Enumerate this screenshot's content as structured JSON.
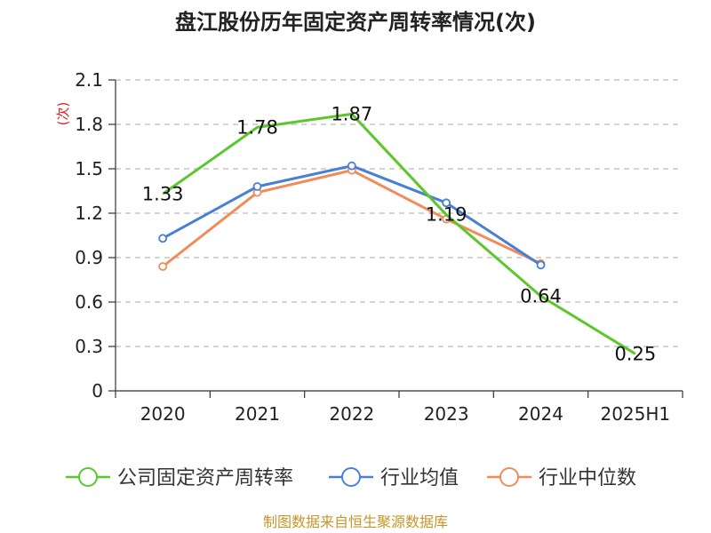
{
  "chart_data": {
    "type": "line",
    "title": "盘江股份历年固定资产周转率情况(次)",
    "ylabel": "(次)",
    "xlabel": "",
    "categories": [
      "2020",
      "2021",
      "2022",
      "2023",
      "2024",
      "2025H1"
    ],
    "y_ticks": [
      "0",
      "0.3",
      "0.6",
      "0.9",
      "1.2",
      "1.5",
      "1.8",
      "2.1"
    ],
    "ylim": [
      0,
      2.1
    ],
    "grid": true,
    "legend_position": "bottom",
    "series": [
      {
        "name": "公司固定资产周转率",
        "color": "#5cc72a",
        "marker": "none",
        "values": [
          1.33,
          1.78,
          1.87,
          1.19,
          0.64,
          0.25
        ],
        "labels": [
          "1.33",
          "1.78",
          "1.87",
          "1.19",
          "0.64",
          "0.25"
        ]
      },
      {
        "name": "行业均值",
        "color": "#4a7fd6",
        "marker": "circle",
        "values": [
          1.03,
          1.38,
          1.52,
          1.27,
          0.85,
          null
        ]
      },
      {
        "name": "行业中位数",
        "color": "#f28b5a",
        "marker": "circle",
        "values": [
          0.84,
          1.34,
          1.49,
          1.16,
          0.86,
          null
        ]
      }
    ],
    "source": "制图数据来自恒生聚源数据库"
  }
}
